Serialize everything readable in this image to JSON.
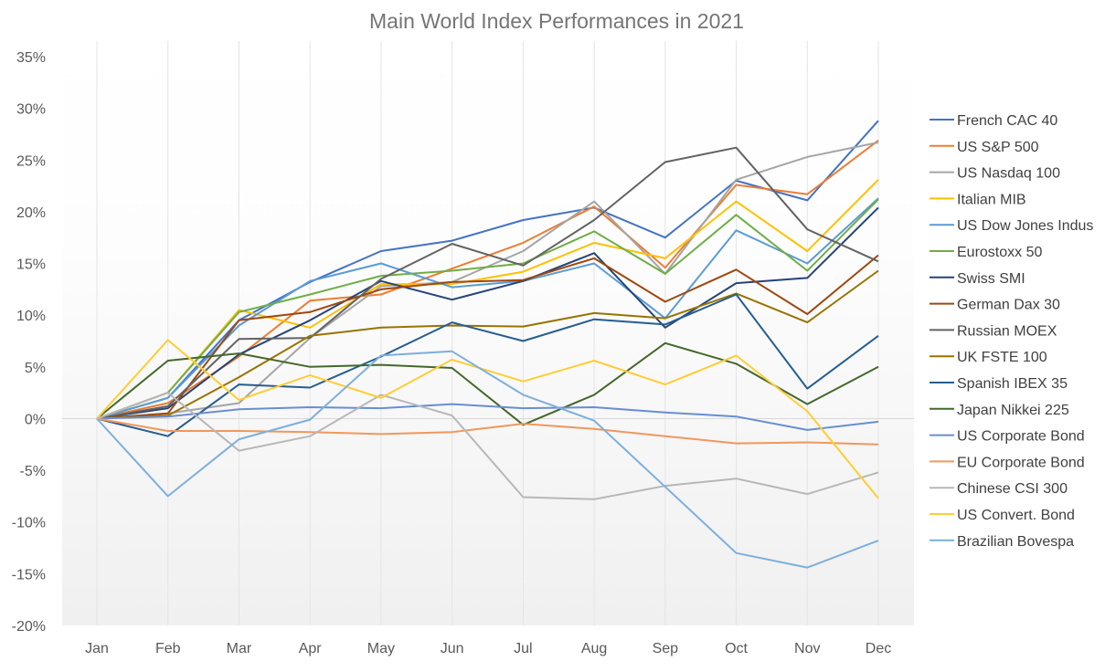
{
  "chart_data": {
    "type": "line",
    "title": "Main World Index Performances in 2021",
    "xlabel": "",
    "ylabel": "",
    "categories": [
      "Jan",
      "Feb",
      "Mar",
      "Apr",
      "May",
      "Jun",
      "Jul",
      "Aug",
      "Sep",
      "Oct",
      "Nov",
      "Dec"
    ],
    "ylim": [
      -0.2,
      0.35
    ],
    "yticks": [
      {
        "value": 0.35,
        "label": "35%"
      },
      {
        "value": 0.3,
        "label": "30%"
      },
      {
        "value": 0.25,
        "label": "25%"
      },
      {
        "value": 0.2,
        "label": "20%"
      },
      {
        "value": 0.15,
        "label": "15%"
      },
      {
        "value": 0.1,
        "label": "10%"
      },
      {
        "value": 0.05,
        "label": "5%"
      },
      {
        "value": 0.0,
        "label": "0%"
      },
      {
        "value": -0.05,
        "label": "-5%"
      },
      {
        "value": -0.1,
        "label": "-10%"
      },
      {
        "value": -0.15,
        "label": "-15%"
      },
      {
        "value": -0.2,
        "label": "-20%"
      }
    ],
    "grid": "vertical",
    "legend": "right",
    "series": [
      {
        "name": "French CAC 40",
        "color": "#4472c4",
        "values": [
          0,
          0.02,
          0.095,
          0.132,
          0.162,
          0.172,
          0.192,
          0.204,
          0.175,
          0.23,
          0.211,
          0.288
        ]
      },
      {
        "name": "US S&P 500",
        "color": "#ed7d31",
        "values": [
          0,
          0.015,
          0.06,
          0.114,
          0.12,
          0.145,
          0.17,
          0.205,
          0.146,
          0.226,
          0.217,
          0.269
        ]
      },
      {
        "name": "US Nasdaq 100",
        "color": "#a5a5a5",
        "values": [
          0,
          0.005,
          0.015,
          0.078,
          0.128,
          0.132,
          0.162,
          0.21,
          0.14,
          0.231,
          0.253,
          0.267
        ]
      },
      {
        "name": "Italian MIB",
        "color": "#ffc000",
        "values": [
          0,
          0.025,
          0.105,
          0.088,
          0.13,
          0.13,
          0.142,
          0.17,
          0.155,
          0.21,
          0.162,
          0.231
        ]
      },
      {
        "name": "US Dow Jones Indus",
        "color": "#5b9bd5",
        "values": [
          0,
          0.02,
          0.09,
          0.133,
          0.15,
          0.127,
          0.133,
          0.15,
          0.097,
          0.182,
          0.15,
          0.213
        ]
      },
      {
        "name": "Eurostoxx 50",
        "color": "#70ad47",
        "values": [
          0,
          0.025,
          0.103,
          0.12,
          0.138,
          0.143,
          0.15,
          0.181,
          0.14,
          0.197,
          0.143,
          0.212
        ]
      },
      {
        "name": "Swiss SMI",
        "color": "#264478",
        "values": [
          0,
          0.01,
          0.062,
          0.095,
          0.133,
          0.115,
          0.133,
          0.16,
          0.088,
          0.131,
          0.136,
          0.204
        ]
      },
      {
        "name": "German Dax 30",
        "color": "#9e480e",
        "values": [
          0,
          0.005,
          0.095,
          0.103,
          0.125,
          0.132,
          0.134,
          0.155,
          0.113,
          0.144,
          0.101,
          0.158
        ]
      },
      {
        "name": "Russian MOEX",
        "color": "#636363",
        "values": [
          0,
          0.012,
          0.077,
          0.078,
          0.135,
          0.169,
          0.148,
          0.192,
          0.248,
          0.262,
          0.183,
          0.152
        ]
      },
      {
        "name": "UK FSTE 100",
        "color": "#997300",
        "values": [
          0,
          0.003,
          0.04,
          0.08,
          0.088,
          0.09,
          0.089,
          0.102,
          0.097,
          0.121,
          0.093,
          0.143
        ]
      },
      {
        "name": "Spanish IBEX 35",
        "color": "#255e91",
        "values": [
          0,
          -0.017,
          0.033,
          0.03,
          0.06,
          0.093,
          0.075,
          0.096,
          0.091,
          0.12,
          0.029,
          0.08
        ]
      },
      {
        "name": "Japan Nikkei 225",
        "color": "#43682b",
        "values": [
          0,
          0.056,
          0.063,
          0.05,
          0.052,
          0.049,
          -0.006,
          0.023,
          0.073,
          0.053,
          0.014,
          0.05
        ]
      },
      {
        "name": "US Corporate Bond",
        "color": "#698ed0",
        "values": [
          0,
          0.002,
          0.009,
          0.011,
          0.01,
          0.014,
          0.01,
          0.011,
          0.006,
          0.002,
          -0.011,
          -0.003
        ]
      },
      {
        "name": "EU Corporate Bond",
        "color": "#f1975a",
        "values": [
          0,
          -0.012,
          -0.012,
          -0.013,
          -0.015,
          -0.013,
          -0.005,
          -0.01,
          -0.017,
          -0.024,
          -0.023,
          -0.025
        ]
      },
      {
        "name": "Chinese CSI 300",
        "color": "#b7b7b7",
        "values": [
          0,
          0.025,
          -0.031,
          -0.017,
          0.023,
          0.003,
          -0.076,
          -0.078,
          -0.065,
          -0.058,
          -0.073,
          -0.052
        ]
      },
      {
        "name": "US Convert. Bond",
        "color": "#ffcd33",
        "values": [
          0,
          0.076,
          0.018,
          0.042,
          0.02,
          0.057,
          0.036,
          0.056,
          0.033,
          0.061,
          0.007,
          -0.077
        ]
      },
      {
        "name": "Brazilian Bovespa",
        "color": "#7cafdd",
        "values": [
          0,
          -0.075,
          -0.02,
          -0.001,
          0.061,
          0.065,
          0.023,
          -0.002,
          -0.066,
          -0.13,
          -0.144,
          -0.118
        ]
      }
    ]
  }
}
